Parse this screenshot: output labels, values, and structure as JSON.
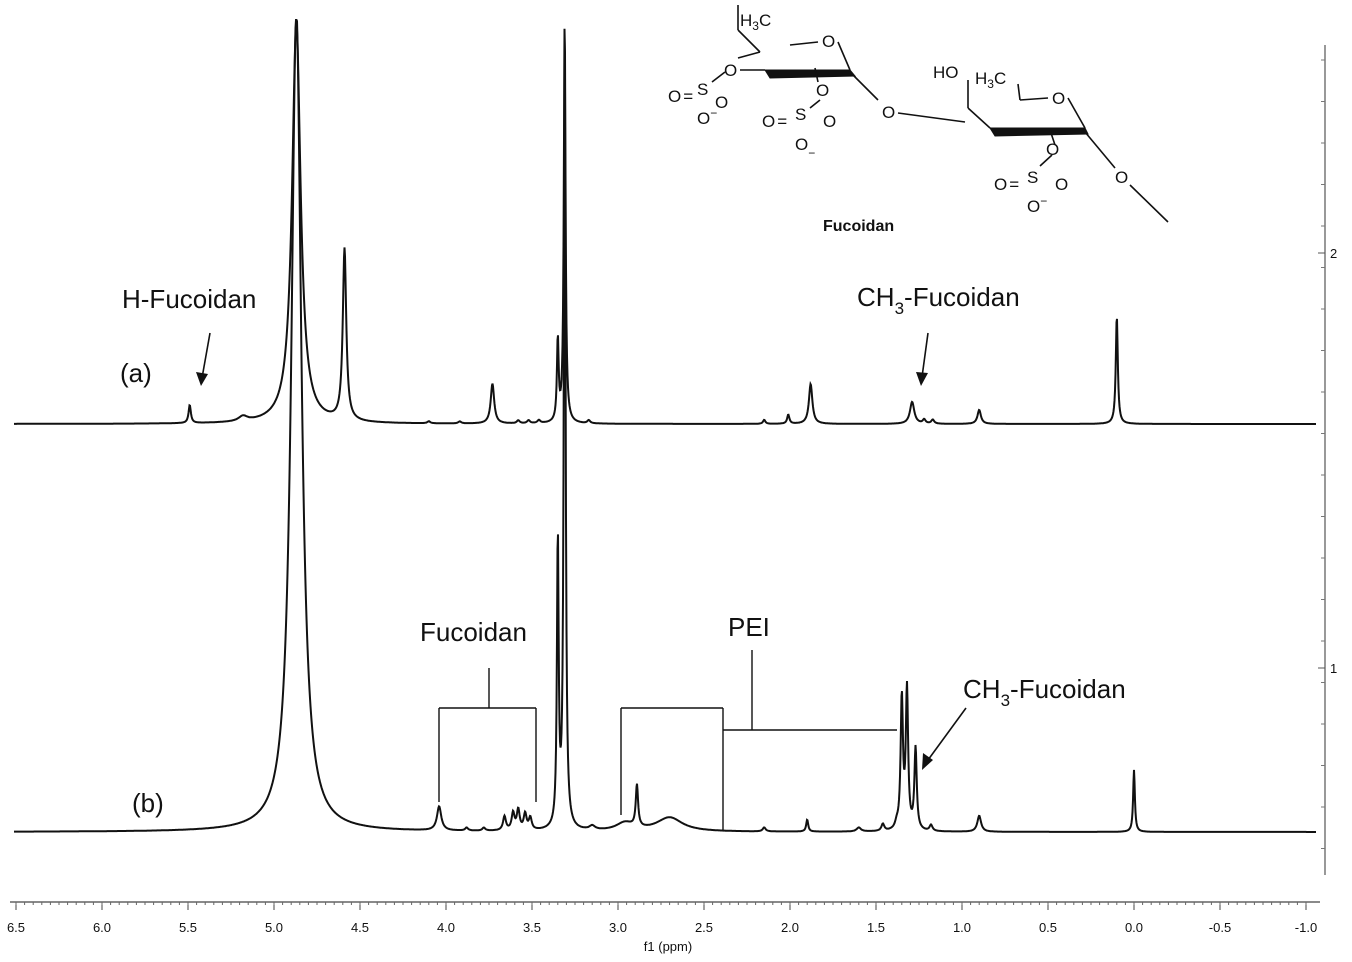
{
  "chart_data": {
    "type": "line",
    "xlabel": "f1 (ppm)",
    "xlim": [
      6.5,
      -1.0
    ],
    "x_ticks": [
      "6.5",
      "6.0",
      "5.5",
      "5.0",
      "4.5",
      "4.0",
      "3.5",
      "3.0",
      "2.5",
      "2.0",
      "1.5",
      "1.0",
      "0.5",
      "0.0",
      "-0.5",
      "-1.0"
    ],
    "right_axis_ticks": [
      "2",
      "1"
    ],
    "series": [
      {
        "name": "(a)",
        "peaks": [
          {
            "ppm": 5.49,
            "height": 18,
            "width": 0.008
          },
          {
            "ppm": 5.18,
            "height": 5,
            "width": 0.03
          },
          {
            "ppm": 4.87,
            "height": 400,
            "width": 0.03
          },
          {
            "ppm": 4.59,
            "height": 172,
            "width": 0.012
          },
          {
            "ppm": 4.1,
            "height": 2,
            "width": 0.01
          },
          {
            "ppm": 3.92,
            "height": 2,
            "width": 0.01
          },
          {
            "ppm": 3.73,
            "height": 40,
            "width": 0.012
          },
          {
            "ppm": 3.58,
            "height": 3,
            "width": 0.01
          },
          {
            "ppm": 3.52,
            "height": 3,
            "width": 0.01
          },
          {
            "ppm": 3.46,
            "height": 3,
            "width": 0.01
          },
          {
            "ppm": 3.35,
            "height": 82,
            "width": 0.006
          },
          {
            "ppm": 3.31,
            "height": 405,
            "width": 0.006
          },
          {
            "ppm": 3.17,
            "height": 3,
            "width": 0.01
          },
          {
            "ppm": 2.15,
            "height": 4,
            "width": 0.008
          },
          {
            "ppm": 2.01,
            "height": 9,
            "width": 0.008
          },
          {
            "ppm": 1.88,
            "height": 40,
            "width": 0.012
          },
          {
            "ppm": 1.29,
            "height": 22,
            "width": 0.015
          },
          {
            "ppm": 1.22,
            "height": 4,
            "width": 0.01
          },
          {
            "ppm": 1.17,
            "height": 4,
            "width": 0.01
          },
          {
            "ppm": 0.9,
            "height": 14,
            "width": 0.012
          },
          {
            "ppm": 0.1,
            "height": 108,
            "width": 0.007
          }
        ]
      },
      {
        "name": "(b)",
        "peaks": [
          {
            "ppm": 4.87,
            "height": 820,
            "width": 0.035
          },
          {
            "ppm": 4.04,
            "height": 24,
            "width": 0.015
          },
          {
            "ppm": 3.88,
            "height": 3,
            "width": 0.01
          },
          {
            "ppm": 3.78,
            "height": 3,
            "width": 0.01
          },
          {
            "ppm": 3.66,
            "height": 14,
            "width": 0.01
          },
          {
            "ppm": 3.61,
            "height": 17,
            "width": 0.01
          },
          {
            "ppm": 3.58,
            "height": 20,
            "width": 0.01
          },
          {
            "ppm": 3.54,
            "height": 16,
            "width": 0.01
          },
          {
            "ppm": 3.51,
            "height": 12,
            "width": 0.01
          },
          {
            "ppm": 3.35,
            "height": 288,
            "width": 0.006
          },
          {
            "ppm": 3.31,
            "height": 810,
            "width": 0.006
          },
          {
            "ppm": 3.15,
            "height": 4,
            "width": 0.02
          },
          {
            "ppm": 2.96,
            "height": 8,
            "width": 0.06
          },
          {
            "ppm": 2.89,
            "height": 42,
            "width": 0.008
          },
          {
            "ppm": 2.7,
            "height": 14,
            "width": 0.09
          },
          {
            "ppm": 2.15,
            "height": 4,
            "width": 0.01
          },
          {
            "ppm": 1.9,
            "height": 12,
            "width": 0.007
          },
          {
            "ppm": 1.6,
            "height": 4,
            "width": 0.015
          },
          {
            "ppm": 1.46,
            "height": 7,
            "width": 0.01
          },
          {
            "ppm": 1.38,
            "height": 5,
            "width": 0.01
          },
          {
            "ppm": 1.35,
            "height": 132,
            "width": 0.008
          },
          {
            "ppm": 1.32,
            "height": 140,
            "width": 0.008
          },
          {
            "ppm": 1.27,
            "height": 82,
            "width": 0.008
          },
          {
            "ppm": 1.18,
            "height": 6,
            "width": 0.01
          },
          {
            "ppm": 0.9,
            "height": 16,
            "width": 0.013
          },
          {
            "ppm": 0.0,
            "height": 62,
            "width": 0.006
          }
        ]
      }
    ],
    "annotations": {
      "a_label": "(a)",
      "b_label": "(b)",
      "h_fucoidan": "H-Fucoidan",
      "ch3_fucoidan_a": {
        "main": "CH",
        "sub": "3",
        "rest": "-Fucoidan"
      },
      "ch3_fucoidan_b": {
        "main": "CH",
        "sub": "3",
        "rest": "-Fucoidan"
      },
      "fucoidan_bracket": "Fucoidan",
      "pei_bracket": "PEI",
      "structure_name": "Fucoidan"
    }
  },
  "structure_labels": {
    "h3c": "H3C",
    "ho": "HO",
    "o": "O",
    "s": "S",
    "minus": "−"
  }
}
